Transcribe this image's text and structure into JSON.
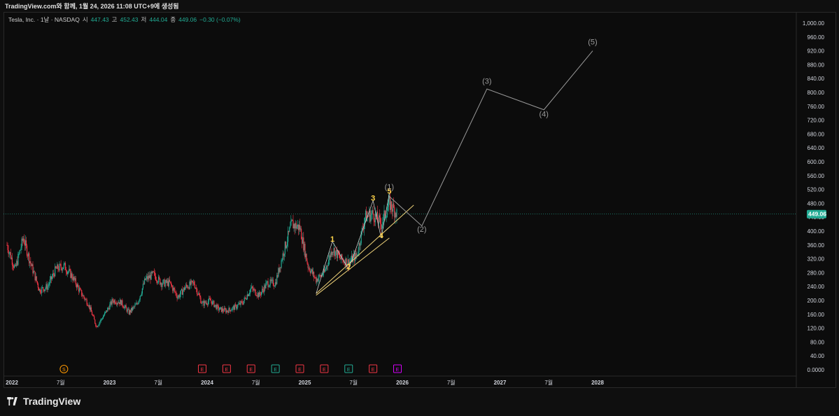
{
  "header": {
    "attribution": "TradingView.com와 함께, 1월 24, 2026 11:08 UTC+9에 생성됨"
  },
  "legend": {
    "symbol": "Tesla, Inc. · 1날 · NASDAQ",
    "open_label": "시",
    "open": "447.43",
    "high_label": "고",
    "high": "452.43",
    "low_label": "저",
    "low": "444.04",
    "close_label": "종",
    "close": "449.06",
    "change": "−0.30 (−0.07%)"
  },
  "brand": {
    "name": "TradingView"
  },
  "colors": {
    "background": "#0f0f0f",
    "up": "#22ab94",
    "down": "#f23645",
    "wave_labels": "#ffd54a",
    "projection": "#9a9a9a",
    "price_badge": "#22ab94",
    "earnings_down": "#f23645",
    "earnings_up": "#22ab94",
    "earnings_next": "#d500f9",
    "split": "#ff9800"
  },
  "chart_data": {
    "type": "candlestick",
    "symbol": "TSLA",
    "last_price": "449.06",
    "ylim": [
      0,
      1000
    ],
    "y_ticks": [
      "1,000.00",
      "960.00",
      "920.00",
      "880.00",
      "840.00",
      "800.00",
      "760.00",
      "720.00",
      "680.00",
      "640.00",
      "600.00",
      "560.00",
      "520.00",
      "480.00",
      "440.00",
      "400.00",
      "360.00",
      "320.00",
      "280.00",
      "240.00",
      "200.00",
      "160.00",
      "120.00",
      "80.00",
      "40.00",
      "0.0000"
    ],
    "x_ticks": [
      "2022",
      "7월",
      "2023",
      "7월",
      "2024",
      "7월",
      "2025",
      "7월",
      "2026",
      "7월",
      "2027",
      "7월",
      "2028"
    ],
    "price_path_monthly": [
      {
        "date": "2022-01",
        "price": 360
      },
      {
        "date": "2022-02",
        "price": 290
      },
      {
        "date": "2022-03",
        "price": 380
      },
      {
        "date": "2022-04",
        "price": 300
      },
      {
        "date": "2022-05",
        "price": 230
      },
      {
        "date": "2022-06",
        "price": 240
      },
      {
        "date": "2022-07",
        "price": 290
      },
      {
        "date": "2022-08",
        "price": 300
      },
      {
        "date": "2022-09",
        "price": 270
      },
      {
        "date": "2022-10",
        "price": 225
      },
      {
        "date": "2022-11",
        "price": 190
      },
      {
        "date": "2022-12",
        "price": 125
      },
      {
        "date": "2023-01",
        "price": 160
      },
      {
        "date": "2023-02",
        "price": 200
      },
      {
        "date": "2023-03",
        "price": 195
      },
      {
        "date": "2023-04",
        "price": 165
      },
      {
        "date": "2023-05",
        "price": 190
      },
      {
        "date": "2023-06",
        "price": 260
      },
      {
        "date": "2023-07",
        "price": 275
      },
      {
        "date": "2023-08",
        "price": 250
      },
      {
        "date": "2023-09",
        "price": 250
      },
      {
        "date": "2023-10",
        "price": 210
      },
      {
        "date": "2023-11",
        "price": 240
      },
      {
        "date": "2023-12",
        "price": 250
      },
      {
        "date": "2024-01",
        "price": 190
      },
      {
        "date": "2024-02",
        "price": 200
      },
      {
        "date": "2024-03",
        "price": 175
      },
      {
        "date": "2024-04",
        "price": 170
      },
      {
        "date": "2024-05",
        "price": 180
      },
      {
        "date": "2024-06",
        "price": 195
      },
      {
        "date": "2024-07",
        "price": 235
      },
      {
        "date": "2024-08",
        "price": 215
      },
      {
        "date": "2024-09",
        "price": 250
      },
      {
        "date": "2024-10",
        "price": 250
      },
      {
        "date": "2024-11",
        "price": 340
      },
      {
        "date": "2024-12",
        "price": 420
      },
      {
        "date": "2025-01",
        "price": 410
      },
      {
        "date": "2025-02",
        "price": 300
      },
      {
        "date": "2025-03",
        "price": 260
      },
      {
        "date": "2025-04",
        "price": 280
      },
      {
        "date": "2025-05",
        "price": 350
      },
      {
        "date": "2025-06",
        "price": 320
      },
      {
        "date": "2025-07",
        "price": 310
      },
      {
        "date": "2025-08",
        "price": 330
      },
      {
        "date": "2025-09",
        "price": 440
      },
      {
        "date": "2025-10",
        "price": 450
      },
      {
        "date": "2025-11",
        "price": 420
      },
      {
        "date": "2025-12",
        "price": 480
      },
      {
        "date": "2026-01",
        "price": 449
      }
    ],
    "wave_labels_minor": [
      {
        "label": "1",
        "date": "2025-05",
        "price": 370
      },
      {
        "label": "2",
        "date": "2025-07",
        "price": 290
      },
      {
        "label": "3",
        "date": "2025-10",
        "price": 488
      },
      {
        "label": "4",
        "date": "2025-11",
        "price": 380
      },
      {
        "label": "5",
        "date": "2025-12",
        "price": 508
      }
    ],
    "wave_labels_major": [
      {
        "label": "(1)",
        "date": "2025-12",
        "price": 520
      },
      {
        "label": "(2)",
        "date": "2026-04",
        "price": 398
      },
      {
        "label": "(3)",
        "date": "2026-12",
        "price": 825
      },
      {
        "label": "(4)",
        "date": "2027-07",
        "price": 730
      },
      {
        "label": "(5)",
        "date": "2028-01",
        "price": 938
      }
    ],
    "projection_path": [
      {
        "date": "2025-12",
        "price": 500
      },
      {
        "date": "2026-04",
        "price": 415
      },
      {
        "date": "2026-12",
        "price": 810
      },
      {
        "date": "2027-07",
        "price": 750
      },
      {
        "date": "2028-01",
        "price": 920
      }
    ],
    "wedge_upper": [
      {
        "date": "2025-03",
        "price": 220
      },
      {
        "date": "2026-03",
        "price": 475
      }
    ],
    "wedge_lower": [
      {
        "date": "2025-03",
        "price": 215
      },
      {
        "date": "2025-12",
        "price": 380
      }
    ],
    "event_markers": [
      {
        "type": "S",
        "date": "2022-08"
      },
      {
        "type": "E",
        "date": "2024-01",
        "kind": "down"
      },
      {
        "type": "E",
        "date": "2024-04",
        "kind": "down"
      },
      {
        "type": "E",
        "date": "2024-07",
        "kind": "down"
      },
      {
        "type": "E",
        "date": "2024-10",
        "kind": "up"
      },
      {
        "type": "E",
        "date": "2025-01",
        "kind": "down"
      },
      {
        "type": "E",
        "date": "2025-04",
        "kind": "down"
      },
      {
        "type": "E",
        "date": "2025-07",
        "kind": "up"
      },
      {
        "type": "E",
        "date": "2025-10",
        "kind": "down"
      },
      {
        "type": "E",
        "date": "2026-01",
        "kind": "next"
      }
    ]
  }
}
